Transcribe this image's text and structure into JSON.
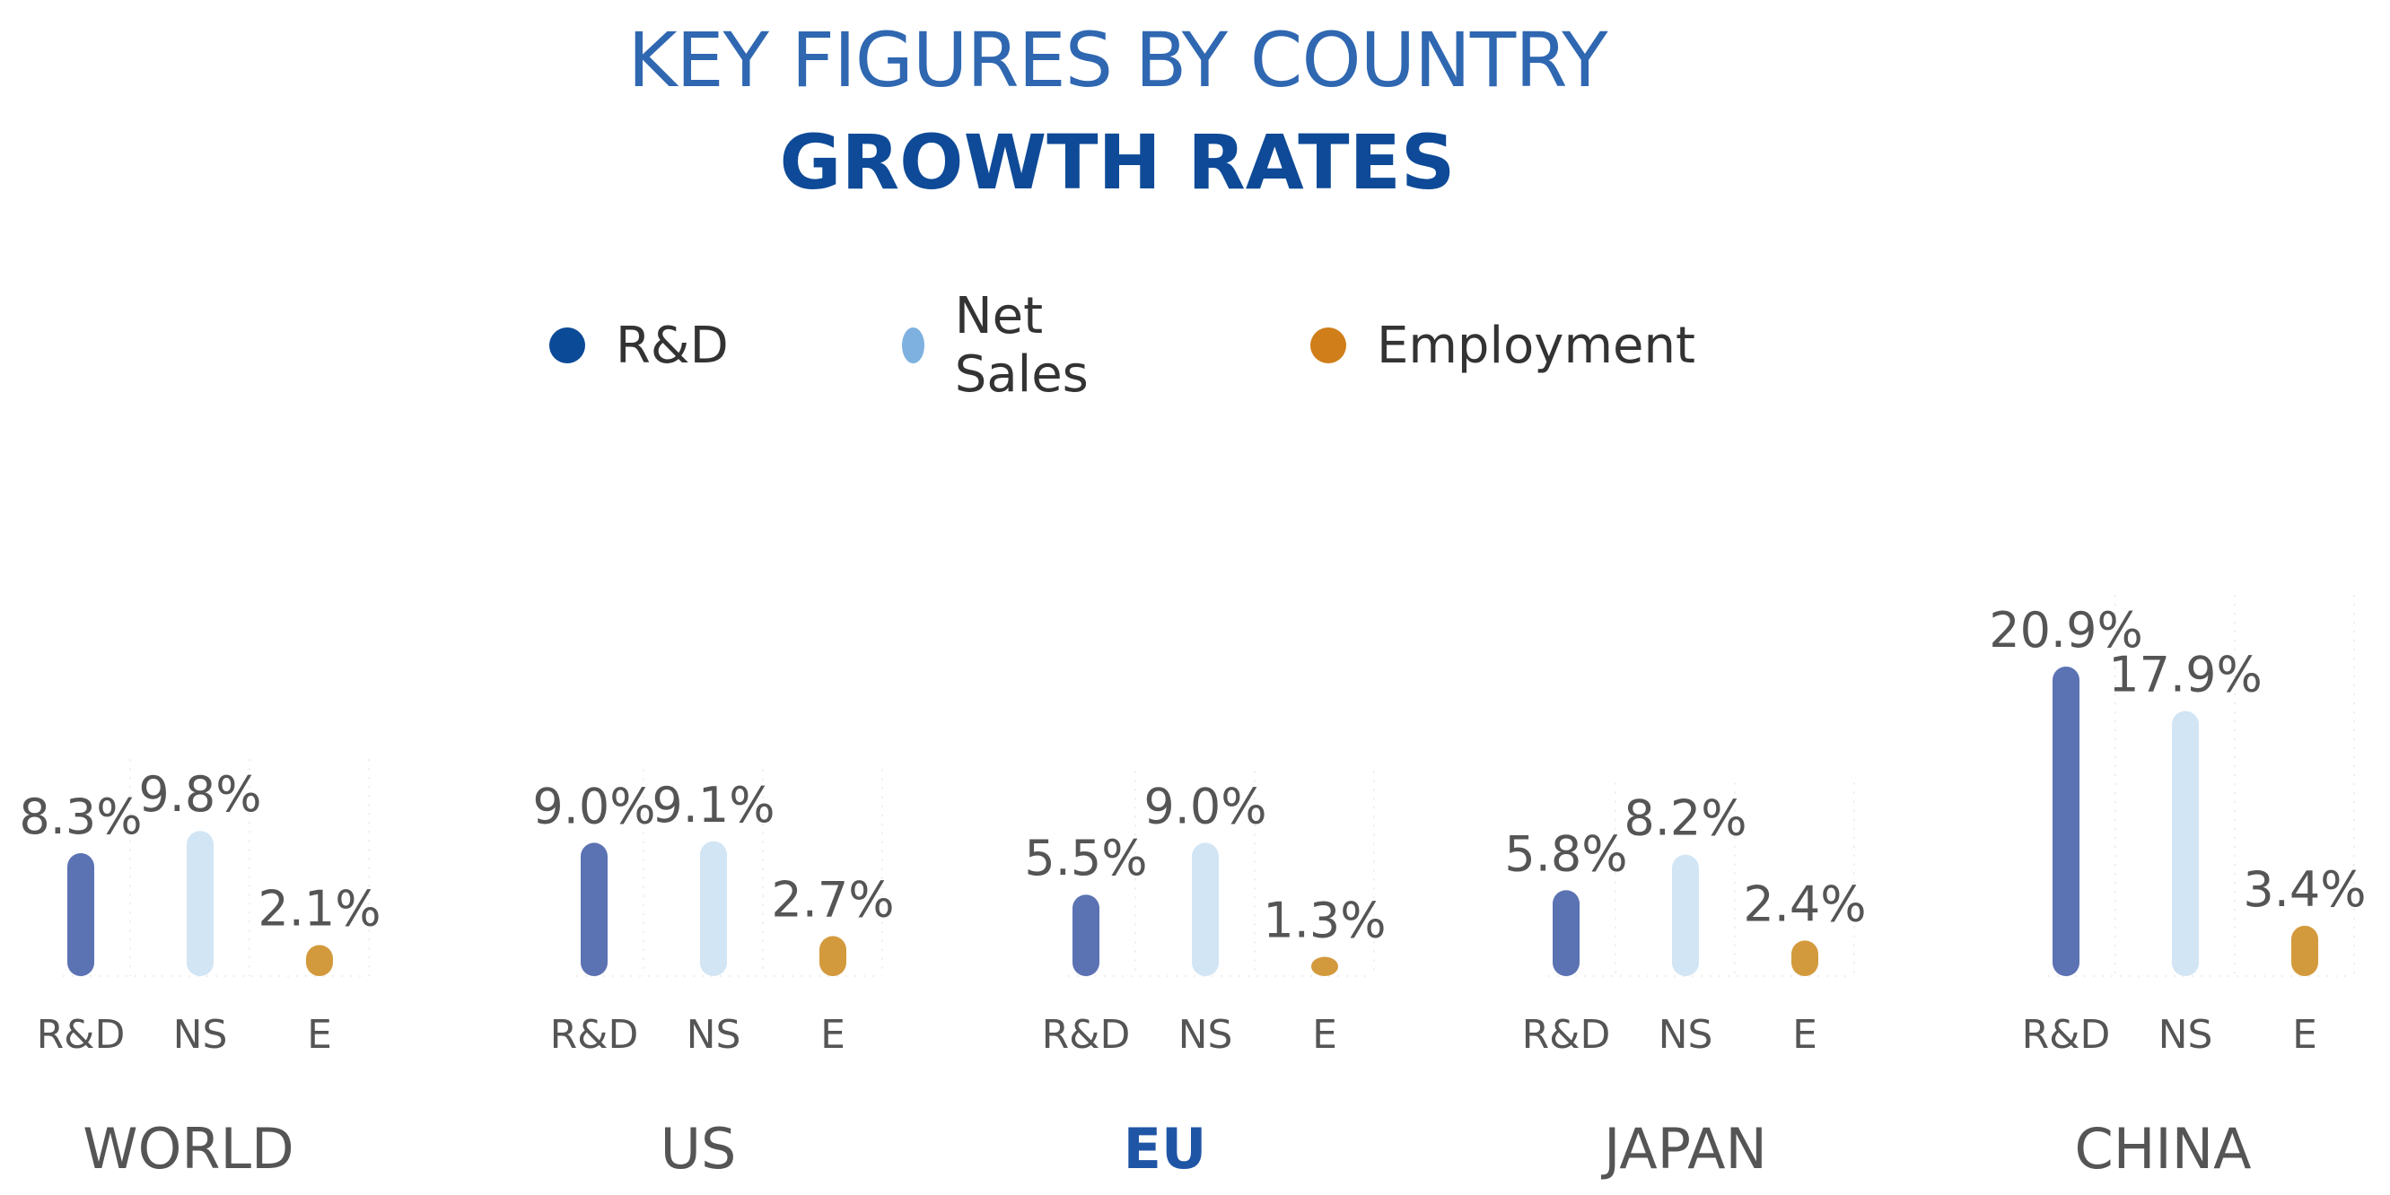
{
  "title": {
    "line1": "KEY FIGURES BY COUNTRY",
    "line2": "GROWTH RATES"
  },
  "colors": {
    "rd": "#5b72b3",
    "ns": "#d2e5f4",
    "e": "#d39a3d",
    "legend_rd": "#0b4a97",
    "legend_ns": "#7eb1e0",
    "legend_e": "#cf7e1a",
    "highlight_label": "#1f55a5",
    "label": "#555555"
  },
  "legend": [
    {
      "key": "rd",
      "label": "R&D"
    },
    {
      "key": "ns",
      "label": "Net Sales"
    },
    {
      "key": "e",
      "label": "Employment"
    }
  ],
  "chart_data": {
    "type": "bar",
    "title": "KEY FIGURES BY COUNTRY",
    "subtitle": "GROWTH RATES",
    "ylim": [
      0,
      21
    ],
    "series_keys": [
      "rd",
      "ns",
      "e"
    ],
    "series_names": [
      "R&D",
      "Net Sales",
      "Employment"
    ],
    "groups": [
      {
        "name": "WORLD",
        "highlight": false,
        "bars": [
          {
            "key": "rd",
            "tick": "R&D",
            "value": 8.3,
            "label": "8.3%"
          },
          {
            "key": "ns",
            "tick": "NS",
            "value": 9.8,
            "label": "9.8%"
          },
          {
            "key": "e",
            "tick": "E",
            "value": 2.1,
            "label": "2.1%"
          }
        ]
      },
      {
        "name": "US",
        "highlight": false,
        "bars": [
          {
            "key": "rd",
            "tick": "R&D",
            "value": 9.0,
            "label": "9.0%"
          },
          {
            "key": "ns",
            "tick": "NS",
            "value": 9.1,
            "label": "9.1%"
          },
          {
            "key": "e",
            "tick": "E",
            "value": 2.7,
            "label": "2.7%"
          }
        ]
      },
      {
        "name": "EU",
        "highlight": true,
        "bars": [
          {
            "key": "rd",
            "tick": "R&D",
            "value": 5.5,
            "label": "5.5%"
          },
          {
            "key": "ns",
            "tick": "NS",
            "value": 9.0,
            "label": "9.0%"
          },
          {
            "key": "e",
            "tick": "E",
            "value": 1.3,
            "label": "1.3%"
          }
        ]
      },
      {
        "name": "JAPAN",
        "highlight": false,
        "bars": [
          {
            "key": "rd",
            "tick": "R&D",
            "value": 5.8,
            "label": "5.8%"
          },
          {
            "key": "ns",
            "tick": "NS",
            "value": 8.2,
            "label": "8.2%"
          },
          {
            "key": "e",
            "tick": "E",
            "value": 2.4,
            "label": "2.4%"
          }
        ]
      },
      {
        "name": "CHINA",
        "highlight": false,
        "bars": [
          {
            "key": "rd",
            "tick": "R&D",
            "value": 20.9,
            "label": "20.9%"
          },
          {
            "key": "ns",
            "tick": "NS",
            "value": 17.9,
            "label": "17.9%"
          },
          {
            "key": "e",
            "tick": "E",
            "value": 3.4,
            "label": "3.4%"
          }
        ]
      }
    ]
  }
}
